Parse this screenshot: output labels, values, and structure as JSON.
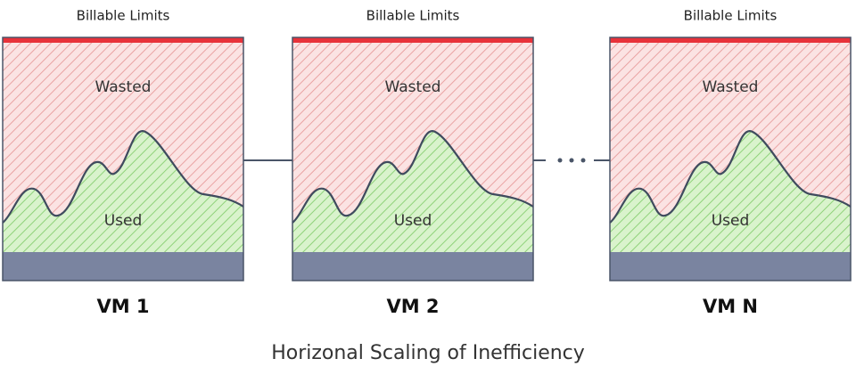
{
  "panels": [
    {
      "limit_label": "Billable Limits",
      "wasted_label": "Wasted",
      "used_label": "Used",
      "vm_label": "VM 1"
    },
    {
      "limit_label": "Billable Limits",
      "wasted_label": "Wasted",
      "used_label": "Used",
      "vm_label": "VM 2"
    },
    {
      "limit_label": "Billable Limits",
      "wasted_label": "Wasted",
      "used_label": "Used",
      "vm_label": "VM N"
    }
  ],
  "caption": "Horizonal Scaling of Inefficiency"
}
